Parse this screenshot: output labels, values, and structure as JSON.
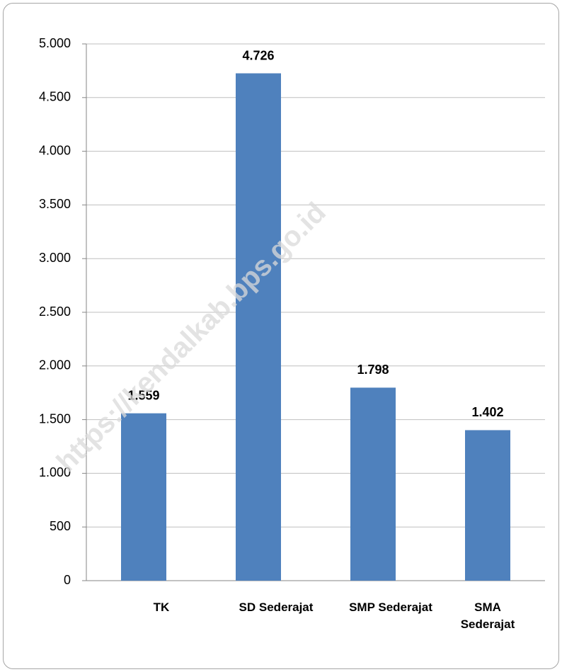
{
  "chart_data": {
    "type": "bar",
    "categories": [
      "TK",
      "SD Sederajat",
      "SMP Sederajat",
      "SMA Sederajat"
    ],
    "values": [
      1559,
      4726,
      1798,
      1402
    ],
    "value_labels": [
      "1.559",
      "4.726",
      "1.798",
      "1.402"
    ],
    "color": "#4f81bd",
    "ylim": [
      0,
      5000
    ],
    "yticks": [
      0,
      500,
      {
        "value": 1000,
        "label": "1.000"
      },
      {
        "value": 1500,
        "label": "1.500"
      },
      {
        "value": 2000,
        "label": "2.000"
      },
      {
        "value": 2500,
        "label": "2.500"
      },
      {
        "value": 3000,
        "label": "3.000"
      },
      {
        "value": 3500,
        "label": "3.500"
      },
      {
        "value": 4000,
        "label": "4.000"
      },
      {
        "value": 4500,
        "label": "4.500"
      },
      {
        "value": 5000,
        "label": "5.000"
      }
    ],
    "grid": true,
    "watermark": "https://kendalkab.bps.go.id"
  }
}
